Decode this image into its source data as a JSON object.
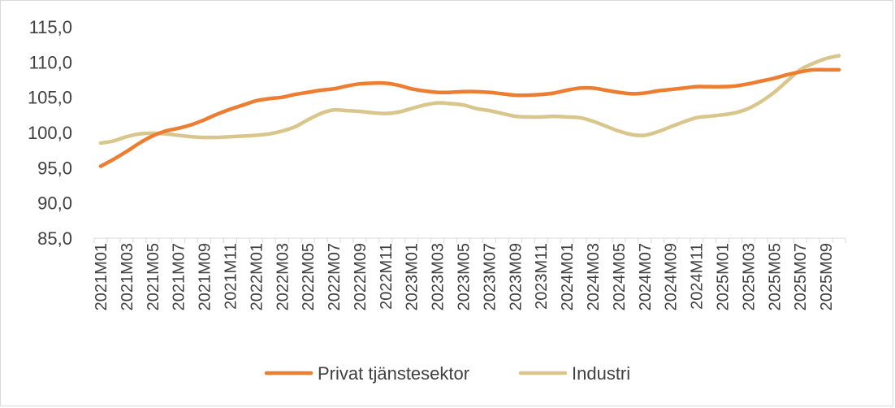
{
  "chart_data": {
    "type": "line",
    "title": "",
    "xlabel": "",
    "ylabel": "",
    "ylim": [
      85,
      115
    ],
    "yticks": [
      "85,0",
      "90,0",
      "95,0",
      "100,0",
      "105,0",
      "110,0",
      "115,0"
    ],
    "ytick_values": [
      85,
      90,
      95,
      100,
      105,
      110,
      115
    ],
    "grid": false,
    "legend_position": "bottom",
    "x": [
      "2021M01",
      "2021M02",
      "2021M03",
      "2021M04",
      "2021M05",
      "2021M06",
      "2021M07",
      "2021M08",
      "2021M09",
      "2021M10",
      "2021M11",
      "2021M12",
      "2022M01",
      "2022M02",
      "2022M03",
      "2022M04",
      "2022M05",
      "2022M06",
      "2022M07",
      "2022M08",
      "2022M09",
      "2022M10",
      "2022M11",
      "2022M12",
      "2023M01",
      "2023M02",
      "2023M03",
      "2023M04",
      "2023M05",
      "2023M06",
      "2023M07",
      "2023M08",
      "2023M09",
      "2023M10",
      "2023M11",
      "2023M12",
      "2024M01",
      "2024M02",
      "2024M03",
      "2024M04",
      "2024M05",
      "2024M06",
      "2024M07",
      "2024M08",
      "2024M09",
      "2024M10",
      "2024M11",
      "2024M12",
      "2025M01",
      "2025M02",
      "2025M03",
      "2025M04",
      "2025M05",
      "2025M06",
      "2025M07",
      "2025M08",
      "2025M09",
      "2025M10"
    ],
    "x_tick_labels": [
      "2021M01",
      "2021M03",
      "2021M05",
      "2021M07",
      "2021M09",
      "2021M11",
      "2022M01",
      "2022M03",
      "2022M05",
      "2022M07",
      "2022M09",
      "2022M11",
      "2023M01",
      "2023M03",
      "2023M05",
      "2023M07",
      "2023M09",
      "2023M11",
      "2024M01",
      "2024M03",
      "2024M05",
      "2024M07",
      "2024M09",
      "2024M11",
      "2025M01",
      "2025M03",
      "2025M05",
      "2025M07",
      "2025M09"
    ],
    "series": [
      {
        "name": "Privat tjänstesektor",
        "color": "#ED7D31",
        "values": [
          95.2,
          96.2,
          97.3,
          98.5,
          99.5,
          100.2,
          100.6,
          101.1,
          101.8,
          102.6,
          103.3,
          103.9,
          104.5,
          104.8,
          105.0,
          105.4,
          105.7,
          106.0,
          106.2,
          106.6,
          106.9,
          107.0,
          107.0,
          106.7,
          106.2,
          105.9,
          105.7,
          105.7,
          105.8,
          105.8,
          105.7,
          105.5,
          105.3,
          105.3,
          105.4,
          105.6,
          106.0,
          106.3,
          106.3,
          106.0,
          105.7,
          105.5,
          105.6,
          105.9,
          106.1,
          106.3,
          106.5,
          106.5,
          106.5,
          106.6,
          106.9,
          107.3,
          107.7,
          108.2,
          108.6,
          108.9,
          108.9,
          108.9
        ]
      },
      {
        "name": "Industri",
        "color": "#D9C68C",
        "values": [
          98.5,
          98.8,
          99.4,
          99.8,
          99.9,
          99.8,
          99.6,
          99.4,
          99.3,
          99.3,
          99.4,
          99.5,
          99.6,
          99.8,
          100.2,
          100.8,
          101.8,
          102.7,
          103.2,
          103.1,
          103.0,
          102.8,
          102.7,
          102.9,
          103.4,
          103.9,
          104.2,
          104.1,
          103.9,
          103.4,
          103.1,
          102.7,
          102.3,
          102.2,
          102.2,
          102.3,
          102.2,
          102.1,
          101.6,
          100.9,
          100.2,
          99.7,
          99.6,
          100.1,
          100.8,
          101.5,
          102.1,
          102.3,
          102.5,
          102.8,
          103.4,
          104.4,
          105.7,
          107.3,
          108.9,
          109.8,
          110.5,
          110.9
        ]
      }
    ]
  }
}
